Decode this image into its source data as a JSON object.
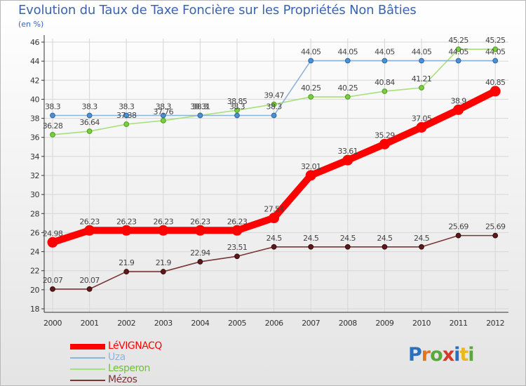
{
  "title": "Evolution du Taux de Taxe Foncière sur les Propriétés Non Bâties",
  "unit": "(en %)",
  "logo": {
    "text": "Proxiti",
    "letters": [
      "P",
      "r",
      "o",
      "x",
      "i",
      "t",
      "i"
    ],
    "colors": [
      "#2b6fc0",
      "#e8731e",
      "#59a83a",
      "#d43a2a",
      "#2b6fc0",
      "#e8b81e",
      "#59a83a"
    ]
  },
  "chart_data": {
    "type": "line",
    "title": "Evolution du Taux de Taxe Foncière sur les Propriétés Non Bâties",
    "ylabel": "(en %)",
    "xlabel": "",
    "x": [
      "2000",
      "2001",
      "2002",
      "2003",
      "2004",
      "2005",
      "2006",
      "2007",
      "2008",
      "2009",
      "2010",
      "2011",
      "2012"
    ],
    "ylim": [
      18,
      46
    ],
    "yticks": [
      "18",
      "20",
      "22",
      "24",
      "26",
      "28",
      "30",
      "32",
      "34",
      "36",
      "38",
      "40",
      "42",
      "44",
      "46"
    ],
    "grid": true,
    "legend_position": "bottom-left",
    "series": [
      {
        "name": "LéVIGNACQ",
        "color": "#ff0000",
        "marker_fill": "#ff0000",
        "marker_stroke": "#ff0000",
        "values": [
          24.98,
          26.23,
          26.23,
          26.23,
          26.23,
          26.23,
          27.54,
          32.01,
          33.61,
          35.29,
          37.05,
          38.9,
          40.85
        ],
        "labels": [
          "24.98",
          "26.23",
          "26.23",
          "26.23",
          "26.23",
          "26.23",
          "27.54",
          "32.01",
          "33.61",
          "35.29",
          "37.05",
          "38.9",
          "40.85"
        ]
      },
      {
        "name": "Uza",
        "color": "#8fb3d6",
        "marker_fill": "#4d8fd0",
        "marker_stroke": "#2a68a8",
        "values": [
          38.3,
          38.3,
          38.3,
          38.3,
          38.3,
          38.3,
          38.3,
          44.05,
          44.05,
          44.05,
          44.05,
          44.05,
          44.05
        ],
        "labels": [
          "38.3",
          "38.3",
          "38.3",
          "38.3",
          "38.3",
          "38.3",
          "38.3",
          "44.05",
          "44.05",
          "44.05",
          "44.05",
          "44.05",
          "44.05"
        ]
      },
      {
        "name": "Lesperon",
        "color": "#a6e07a",
        "marker_fill": "#7ccc3f",
        "marker_stroke": "#4c9a1f",
        "values": [
          36.28,
          36.64,
          37.38,
          37.76,
          38.31,
          38.85,
          39.47,
          40.25,
          40.25,
          40.84,
          41.21,
          45.25,
          45.25
        ],
        "labels": [
          "36.28",
          "36.64",
          "37.38",
          "37.76",
          "38.31",
          "38.85",
          "39.47",
          "40.25",
          "40.25",
          "40.84",
          "41.21",
          "45.25",
          "45.25"
        ]
      },
      {
        "name": "Mézos",
        "color": "#7a3535",
        "marker_fill": "#5a1a1a",
        "marker_stroke": "#3a0a0a",
        "values": [
          20.07,
          20.07,
          21.9,
          21.9,
          22.94,
          23.51,
          24.5,
          24.5,
          24.5,
          24.5,
          24.5,
          25.69,
          25.69
        ],
        "labels": [
          "20.07",
          "20.07",
          "21.9",
          "21.9",
          "22.94",
          "23.51",
          "24.5",
          "24.5",
          "24.5",
          "24.5",
          "24.5",
          "25.69",
          "25.69"
        ]
      }
    ]
  }
}
